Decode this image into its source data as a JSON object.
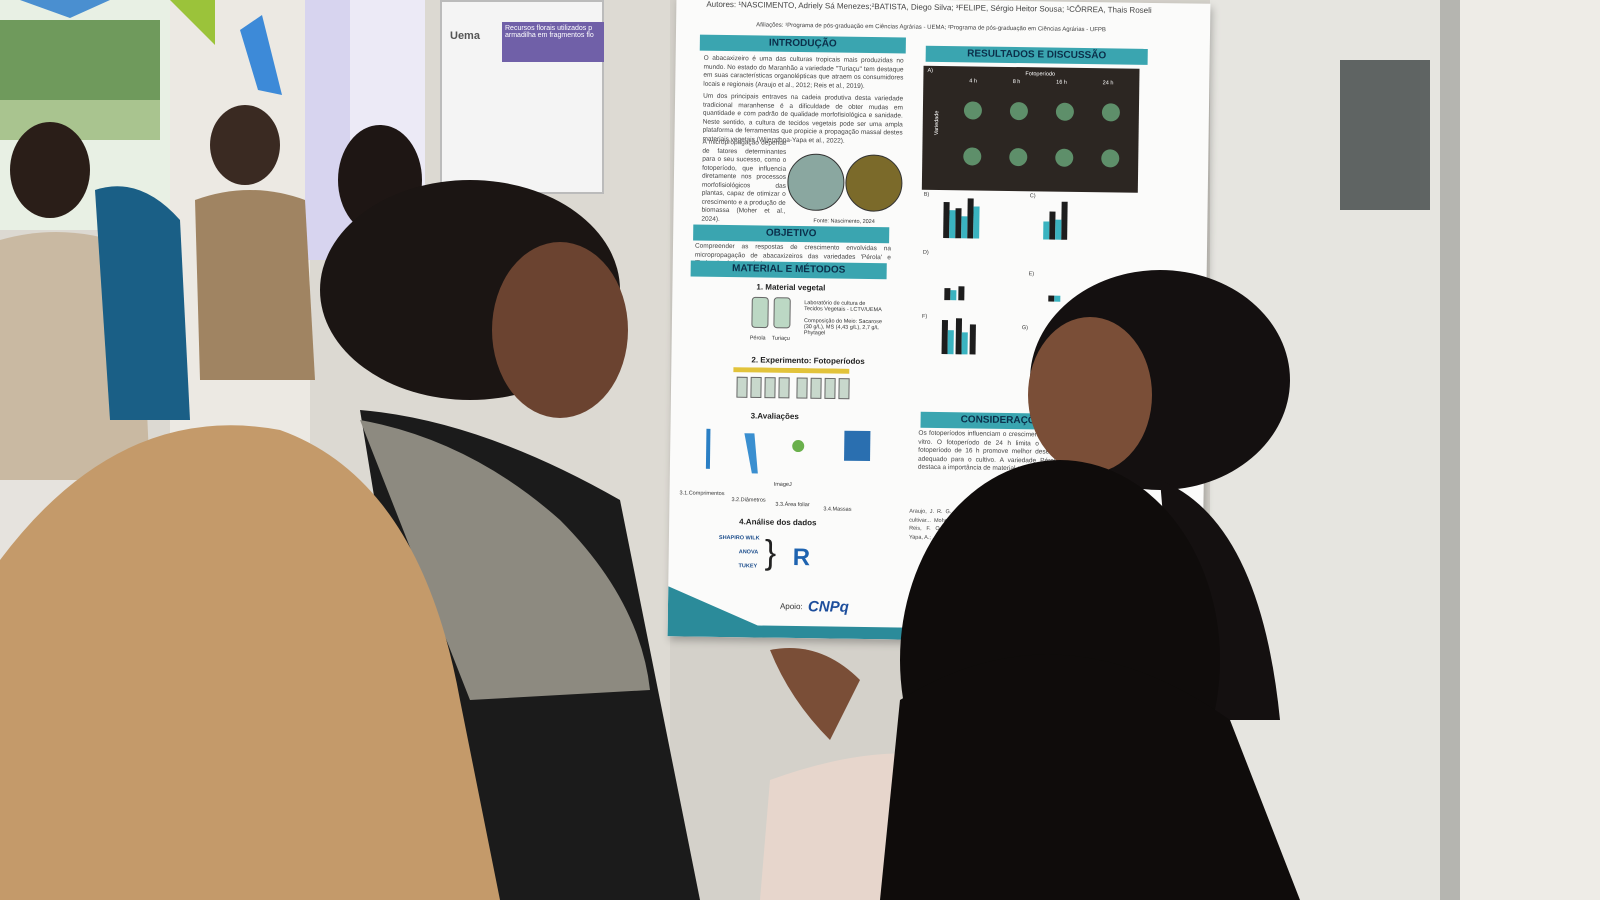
{
  "background_poster": {
    "logo": "Uema",
    "title_line1": "Recursos florais utilizados p",
    "title_line2": "armadilha em fragmentos flo"
  },
  "poster": {
    "authors": "Autores: ¹NASCIMENTO, Adriely Sá Menezes;²BATISTA, Diego Silva; ³FELIPE, Sérgio Heitor Sousa; ¹CÔRREA, Thais Roseli",
    "affiliations": "Afiliações: ¹Programa de pós-graduação em Ciências Agrárias - UEMA; ²Programa de pós-graduação em Ciências Agrárias - UFPB",
    "introduction": {
      "title": "INTRODUÇÃO",
      "text": "O abacaxizeiro é uma das culturas tropicais mais produzidas no mundo. No estado do Maranhão a variedade \"Turiaçu\" tem destaque em suas características organolépticas que atraem os consumidores locais e regionais (Araujo et al., 2012; Reis et al., 2019).",
      "text2": "Um dos principais entraves na cadeia produtiva desta variedade tradicional maranhense é a dificuldade de obter mudas em quantidade e com padrão de qualidade morfofisiológica e sanidade. Neste sentido, a cultura de tecidos vegetais pode ser uma ampla plataforma de ferramentas que propicie a propagação massal destes materiais vegetais (Wijerathna-Yapa et al., 2022).",
      "text3": "A micropropagação depende de fatores determinantes para o seu sucesso, como o fotoperíodo, que influencia diretamente nos processos morfofisiológicos das plantas, capaz de otimizar o crescimento e a produção de biomassa (Moher et al., 2024).",
      "credit": "Fonte: Nascimento, 2024"
    },
    "objective": {
      "title": "OBJETIVO",
      "text": "Compreender as respostas de crescimento envolvidas na micropropagação de abacaxizeiros das variedades 'Pérola' e 'Turiaçu' sob fotoperíodos."
    },
    "methods": {
      "title": "MATERIAL E MÉTODOS",
      "step1": "1. Material vegetal",
      "lab": "Laboratório de cultura de Tecidos Vegetais - LCTV/UEMA",
      "medium": "Composição do Meio: Sacarose (30 g/L), MS (4,43 g/L), 2,7 g/L Phytagel",
      "var1": "Pérola",
      "var2": "Turiaçu",
      "step2": "2. Experimento: Fotoperíodos",
      "step3": "3.Avaliações",
      "eval1": "3.1.Comprimentos",
      "eval2": "3.2.Diâmetros",
      "eval3": "3.3.Área foliar",
      "eval4": "3.4.Massas",
      "imagej": "ImageJ",
      "step4": "4.Análise dos dados",
      "test1": "SHAPIRO WILK",
      "test2": "ANOVA",
      "test3": "TUKEY",
      "software": "R"
    },
    "results": {
      "title": "RESULTADOS E DISCUSSÃO",
      "panel": "A)",
      "factor": "Fotoperíodo",
      "levels": [
        "4 h",
        "8 h",
        "16 h",
        "24 h"
      ],
      "row_label": "Variedade",
      "panels": [
        "B)",
        "C)",
        "D)",
        "E)",
        "F)",
        "G)"
      ]
    },
    "conclusions": {
      "title": "CONSIDERAÇÕES FINA",
      "text": "Os fotoperíodos influenciam o crescimento das plantas cultivadas in vitro. O fotoperíodo de 24 h limita o crescimento enquanto o fotoperíodo de 16 h promove melhor desempenho sendo o mais adequado para o cultivo. A variedade Pérola apresentou o que destaca a importância de material genético utilizado."
    },
    "references": {
      "text": "Araujo, J. R. G. Aguiar... \"Turiaçu\" cultivar... Moher, M.; Jones, M.; ... Reis, F. O. Araújo... Wijerathna-Yapa, A.; ..."
    },
    "support": "Apoio:",
    "sponsor": "CNPq"
  }
}
